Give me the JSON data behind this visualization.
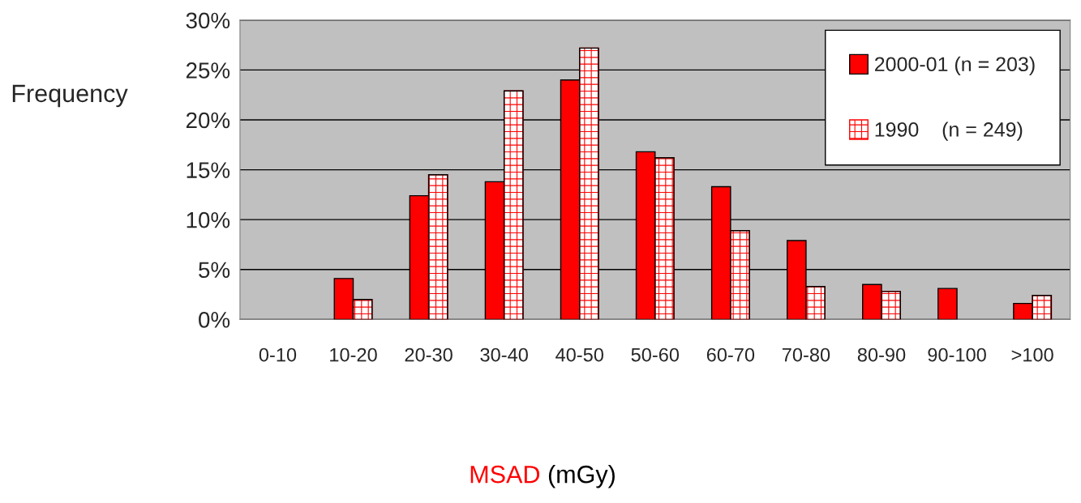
{
  "chart_data": {
    "type": "bar",
    "ylabel": "Frequency",
    "xlabel": "MSAD (mGy)",
    "categories": [
      "0-10",
      "10-20",
      "20-30",
      "30-40",
      "40-50",
      "50-60",
      "60-70",
      "70-80",
      "80-90",
      "90-100",
      ">100"
    ],
    "series": [
      {
        "name": "2000-01 (n = 203)",
        "color": "#ff0000",
        "values": [
          null,
          4.1,
          12.4,
          13.8,
          24.0,
          16.8,
          13.3,
          7.9,
          3.5,
          3.1,
          1.6
        ]
      },
      {
        "name": "1990    (n = 249)",
        "color": "#ff0000",
        "values": [
          null,
          2.0,
          14.5,
          22.9,
          27.2,
          16.2,
          8.9,
          3.3,
          2.8,
          null,
          2.4
        ]
      }
    ],
    "ylim": [
      0,
      30
    ],
    "yticks": [
      {
        "value": 0,
        "label": "0%"
      },
      {
        "value": 5,
        "label": "5%"
      },
      {
        "value": 10,
        "label": "10%"
      },
      {
        "value": 15,
        "label": "15%"
      },
      {
        "value": 20,
        "label": "20%"
      },
      {
        "value": 25,
        "label": "25%"
      },
      {
        "value": 30,
        "label": "30%"
      }
    ],
    "grid": "y",
    "legend": "top right"
  }
}
